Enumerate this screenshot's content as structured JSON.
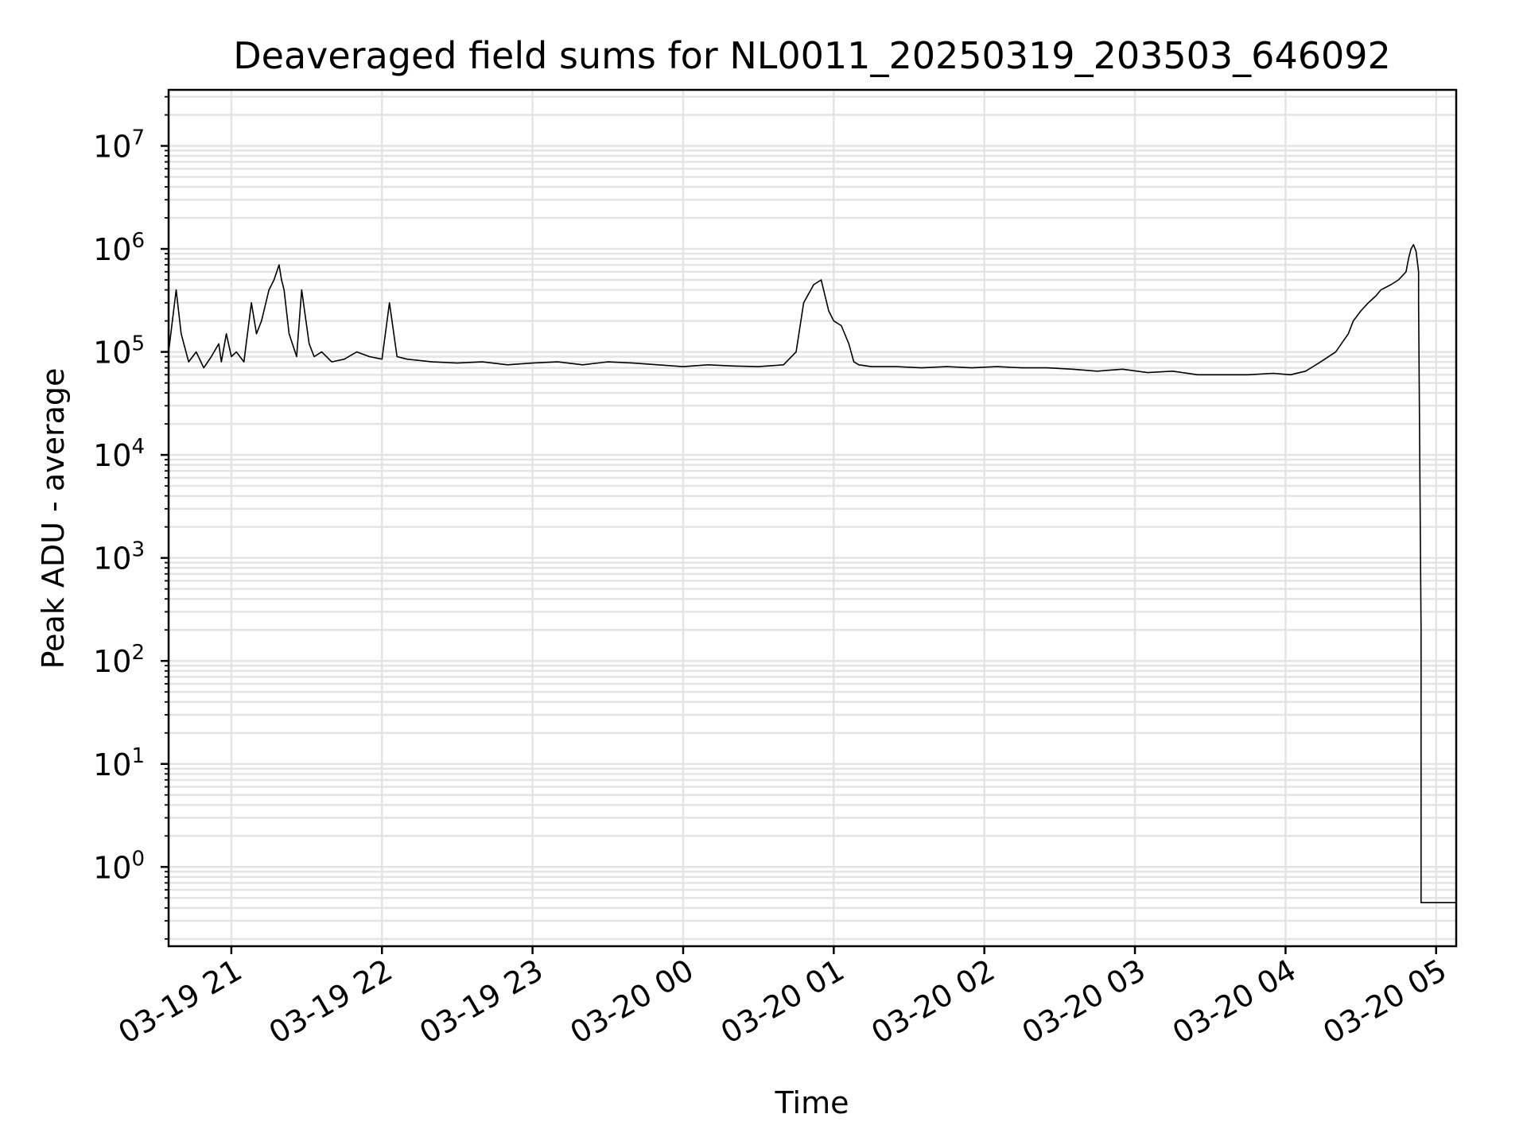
{
  "chart_data": {
    "type": "line",
    "title": "Deaveraged field sums for NL0011_20250319_203503_646092",
    "xlabel": "Time",
    "ylabel": "Peak ADU - average",
    "yscale": "log",
    "ylim": [
      0.17,
      35000000
    ],
    "xlim": [
      "2025-03-19 20:35",
      "2025-03-20 05:08"
    ],
    "grid": true,
    "x_ticks": [
      {
        "label": "03-19 21",
        "value": "2025-03-19 21:00"
      },
      {
        "label": "03-19 22",
        "value": "2025-03-19 22:00"
      },
      {
        "label": "03-19 23",
        "value": "2025-03-19 23:00"
      },
      {
        "label": "03-20 00",
        "value": "2025-03-20 00:00"
      },
      {
        "label": "03-20 01",
        "value": "2025-03-20 01:00"
      },
      {
        "label": "03-20 02",
        "value": "2025-03-20 02:00"
      },
      {
        "label": "03-20 03",
        "value": "2025-03-20 03:00"
      },
      {
        "label": "03-20 04",
        "value": "2025-03-20 04:00"
      },
      {
        "label": "03-20 05",
        "value": "2025-03-20 05:00"
      }
    ],
    "y_ticks": [
      {
        "base": "10",
        "exp": "0",
        "value": 1
      },
      {
        "base": "10",
        "exp": "1",
        "value": 10
      },
      {
        "base": "10",
        "exp": "2",
        "value": 100
      },
      {
        "base": "10",
        "exp": "3",
        "value": 1000
      },
      {
        "base": "10",
        "exp": "4",
        "value": 10000
      },
      {
        "base": "10",
        "exp": "5",
        "value": 100000
      },
      {
        "base": "10",
        "exp": "6",
        "value": 1000000
      },
      {
        "base": "10",
        "exp": "7",
        "value": 10000000
      }
    ],
    "series": [
      {
        "color": "#000000",
        "x": [
          "2025-03-19 20:35",
          "2025-03-19 20:38",
          "2025-03-19 20:40",
          "2025-03-19 20:43",
          "2025-03-19 20:46",
          "2025-03-19 20:49",
          "2025-03-19 20:52",
          "2025-03-19 20:55",
          "2025-03-19 20:56",
          "2025-03-19 20:58",
          "2025-03-19 21:00",
          "2025-03-19 21:02",
          "2025-03-19 21:05",
          "2025-03-19 21:08",
          "2025-03-19 21:10",
          "2025-03-19 21:12",
          "2025-03-19 21:15",
          "2025-03-19 21:17",
          "2025-03-19 21:19",
          "2025-03-19 21:20",
          "2025-03-19 21:21",
          "2025-03-19 21:23",
          "2025-03-19 21:26",
          "2025-03-19 21:28",
          "2025-03-19 21:31",
          "2025-03-19 21:33",
          "2025-03-19 21:36",
          "2025-03-19 21:40",
          "2025-03-19 21:45",
          "2025-03-19 21:50",
          "2025-03-19 21:55",
          "2025-03-19 22:00",
          "2025-03-19 22:03",
          "2025-03-19 22:06",
          "2025-03-19 22:10",
          "2025-03-19 22:20",
          "2025-03-19 22:30",
          "2025-03-19 22:40",
          "2025-03-19 22:50",
          "2025-03-19 23:00",
          "2025-03-19 23:10",
          "2025-03-19 23:20",
          "2025-03-19 23:30",
          "2025-03-19 23:40",
          "2025-03-19 23:50",
          "2025-03-20 00:00",
          "2025-03-20 00:10",
          "2025-03-20 00:20",
          "2025-03-20 00:30",
          "2025-03-20 00:40",
          "2025-03-20 00:45",
          "2025-03-20 00:48",
          "2025-03-20 00:52",
          "2025-03-20 00:55",
          "2025-03-20 00:58",
          "2025-03-20 01:00",
          "2025-03-20 01:03",
          "2025-03-20 01:06",
          "2025-03-20 01:08",
          "2025-03-20 01:10",
          "2025-03-20 01:15",
          "2025-03-20 01:25",
          "2025-03-20 01:35",
          "2025-03-20 01:45",
          "2025-03-20 01:55",
          "2025-03-20 02:05",
          "2025-03-20 02:15",
          "2025-03-20 02:25",
          "2025-03-20 02:35",
          "2025-03-20 02:45",
          "2025-03-20 02:55",
          "2025-03-20 03:05",
          "2025-03-20 03:15",
          "2025-03-20 03:25",
          "2025-03-20 03:35",
          "2025-03-20 03:45",
          "2025-03-20 03:55",
          "2025-03-20 04:02",
          "2025-03-20 04:08",
          "2025-03-20 04:14",
          "2025-03-20 04:20",
          "2025-03-20 04:25",
          "2025-03-20 04:27",
          "2025-03-20 04:30",
          "2025-03-20 04:33",
          "2025-03-20 04:36",
          "2025-03-20 04:38",
          "2025-03-20 04:42",
          "2025-03-20 04:45",
          "2025-03-20 04:48",
          "2025-03-20 04:49",
          "2025-03-20 04:50",
          "2025-03-20 04:51",
          "2025-03-20 04:52",
          "2025-03-20 04:53",
          "2025-03-20 04:53",
          "2025-03-20 04:54",
          "2025-03-20 04:54",
          "2025-03-20 05:08"
        ],
        "y": [
          100000,
          400000,
          150000,
          80000,
          100000,
          70000,
          90000,
          120000,
          80000,
          150000,
          90000,
          100000,
          80000,
          300000,
          150000,
          200000,
          400000,
          500000,
          700000,
          500000,
          400000,
          150000,
          90000,
          400000,
          120000,
          90000,
          100000,
          80000,
          85000,
          100000,
          90000,
          85000,
          300000,
          90000,
          85000,
          80000,
          78000,
          80000,
          75000,
          78000,
          80000,
          75000,
          80000,
          78000,
          75000,
          72000,
          75000,
          73000,
          72000,
          75000,
          100000,
          300000,
          450000,
          500000,
          250000,
          200000,
          180000,
          120000,
          80000,
          75000,
          72000,
          72000,
          70000,
          72000,
          70000,
          72000,
          70000,
          70000,
          68000,
          65000,
          68000,
          63000,
          65000,
          60000,
          60000,
          60000,
          62000,
          60000,
          65000,
          80000,
          100000,
          150000,
          200000,
          250000,
          300000,
          350000,
          400000,
          450000,
          500000,
          600000,
          800000,
          1000000,
          1100000,
          950000,
          600000,
          300000,
          200,
          0.45,
          0.45
        ]
      }
    ]
  }
}
